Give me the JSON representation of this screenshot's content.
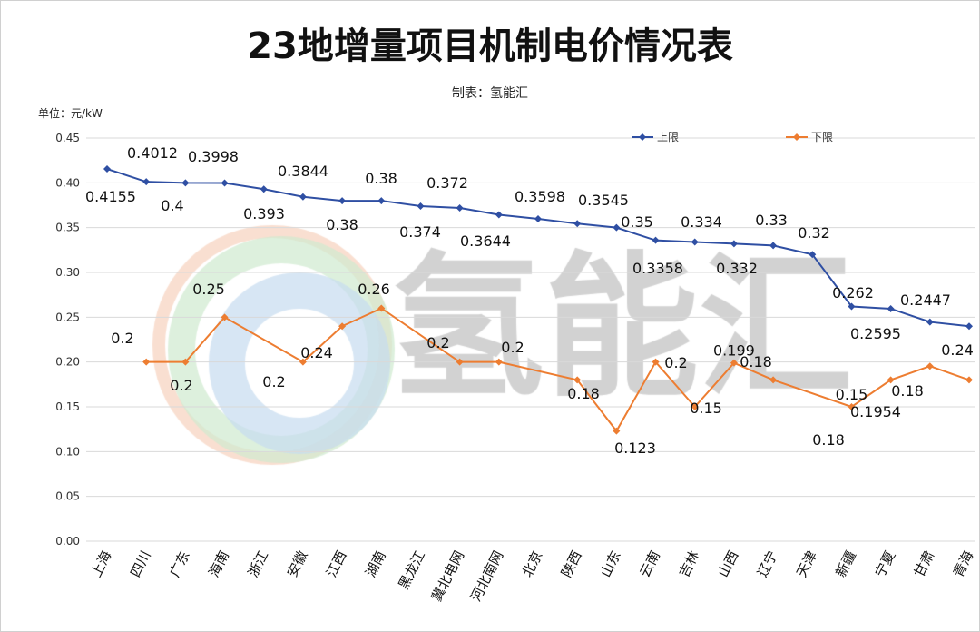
{
  "chart_data": {
    "type": "line",
    "title": "23地增量项目机制电价情况表",
    "subtitle": "制表：氢能汇",
    "ylabel": "单位：元/kW",
    "watermark": "氢能汇",
    "ylim": [
      0,
      0.45
    ],
    "yticks": [
      "0.00",
      "0.05",
      "0.10",
      "0.15",
      "0.20",
      "0.25",
      "0.30",
      "0.35",
      "0.40",
      "0.45"
    ],
    "grid": true,
    "legend_position": "top-right",
    "categories": [
      "上海",
      "四川",
      "广东",
      "海南",
      "浙江",
      "安徽",
      "江西",
      "湖南",
      "黑龙江",
      "冀北电网",
      "河北南网",
      "北京",
      "陕西",
      "山东",
      "云南",
      "吉林",
      "山西",
      "辽宁",
      "天津",
      "新疆",
      "宁夏",
      "甘肃",
      "青海"
    ],
    "series": [
      {
        "name": "上限",
        "color": "#2f4fa3",
        "values": [
          0.4155,
          0.4012,
          0.4,
          0.3998,
          0.393,
          0.3844,
          0.38,
          0.38,
          0.374,
          0.372,
          0.3644,
          0.3598,
          0.3545,
          0.35,
          0.3358,
          0.334,
          0.332,
          0.33,
          0.32,
          0.262,
          0.2595,
          0.2447,
          0.24
        ]
      },
      {
        "name": "下限",
        "color": "#ed7d31",
        "values": [
          null,
          0.2,
          0.2,
          0.25,
          null,
          0.2,
          0.24,
          0.26,
          null,
          0.2,
          0.2,
          null,
          0.18,
          0.123,
          0.2,
          0.15,
          0.199,
          0.18,
          null,
          0.15,
          0.18,
          0.1954,
          0.18
        ]
      }
    ]
  }
}
